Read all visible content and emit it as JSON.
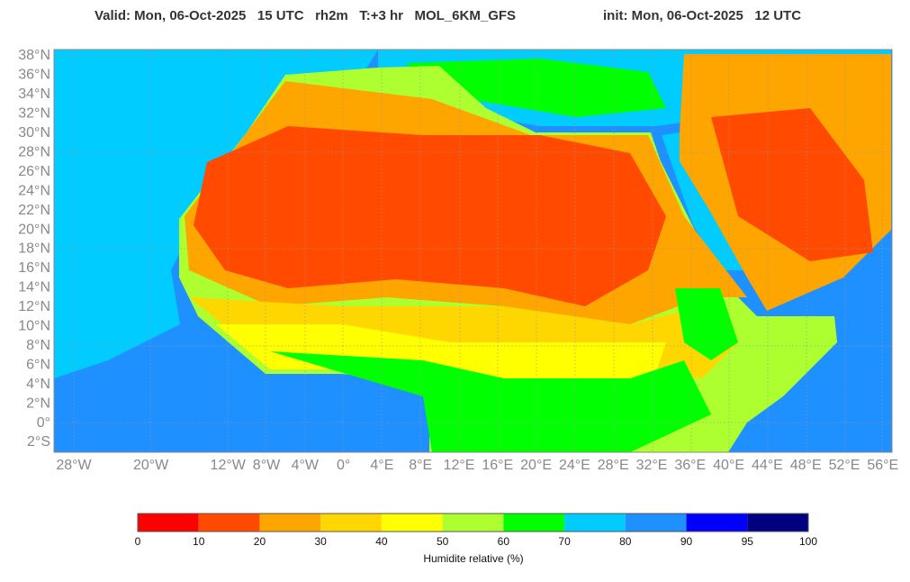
{
  "header": {
    "valid": "Valid: Mon, 06-Oct-2025   15 UTC   rh2m   T:+3 hr   MOL_6KM_GFS",
    "init": "init: Mon, 06-Oct-2025   12 UTC"
  },
  "map": {
    "lat_labels": [
      "38°N",
      "36°N",
      "34°N",
      "32°N",
      "30°N",
      "28°N",
      "26°N",
      "24°N",
      "22°N",
      "20°N",
      "18°N",
      "16°N",
      "14°N",
      "12°N",
      "10°N",
      "8°N",
      "6°N",
      "4°N",
      "2°N",
      "0°",
      "2°S"
    ],
    "lon_labels": [
      "28°W",
      null,
      "20°W",
      null,
      "12°W",
      "8°W",
      "4°W",
      "0°",
      "4°E",
      "8°E",
      "12°E",
      "16°E",
      "20°E",
      "24°E",
      "28°E",
      "32°E",
      "36°E",
      "40°E",
      "44°E",
      "48°E",
      "52°E",
      "56°E"
    ]
  },
  "colorbar": {
    "label": "Humidite relative (%)",
    "ticks": [
      0,
      10,
      20,
      30,
      40,
      50,
      60,
      70,
      80,
      90,
      95,
      100
    ],
    "colors": [
      "#ff0000",
      "#ff4a00",
      "#ffa500",
      "#ffd700",
      "#ffff00",
      "#adff2f",
      "#00ff00",
      "#00ccff",
      "#1e90ff",
      "#0000ff",
      "#000080"
    ]
  }
}
